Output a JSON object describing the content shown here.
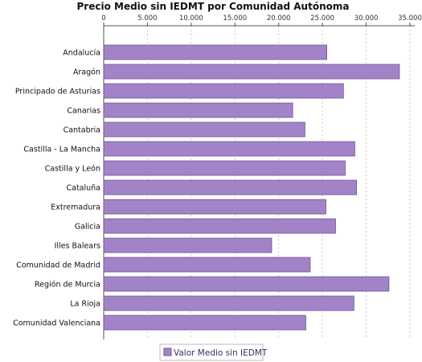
{
  "chart_data": {
    "type": "bar",
    "orientation": "horizontal",
    "title": "Precio Medio sin IEDMT por Comunidad Autónoma",
    "xlabel": "",
    "ylabel": "",
    "xlim": [
      0,
      35000
    ],
    "x_ticks": [
      "0",
      "5.000",
      "10.000",
      "15.000",
      "20.000",
      "25.000",
      "30.000",
      "35.000"
    ],
    "x_tick_values": [
      0,
      5000,
      10000,
      15000,
      20000,
      25000,
      30000,
      35000
    ],
    "x_axis_position": "top",
    "grid": "vertical dashed",
    "legend_position": "bottom",
    "categories": [
      "Andalucía",
      "Aragón",
      "Principado de Asturias",
      "Canarias",
      "Cantabria",
      "Castilla - La Mancha",
      "Castilla y León",
      "Cataluña",
      "Extremadura",
      "Galicia",
      "Illes Balears",
      "Comunidad de Madrid",
      "Región de Murcia",
      "La Rioja",
      "Comunidad Valenciana"
    ],
    "series": [
      {
        "name": "Valor Medio sin IEDMT",
        "color": "#a383c8",
        "values": [
          25500,
          33800,
          27400,
          21600,
          23000,
          28700,
          27600,
          28900,
          25400,
          26500,
          19200,
          23600,
          32600,
          28600,
          23100
        ]
      }
    ]
  },
  "colors": {
    "bar_fill": "#a383c8",
    "bar_stroke": "#6d5590",
    "grid": "#c8c8c8",
    "axis": "#555555"
  }
}
